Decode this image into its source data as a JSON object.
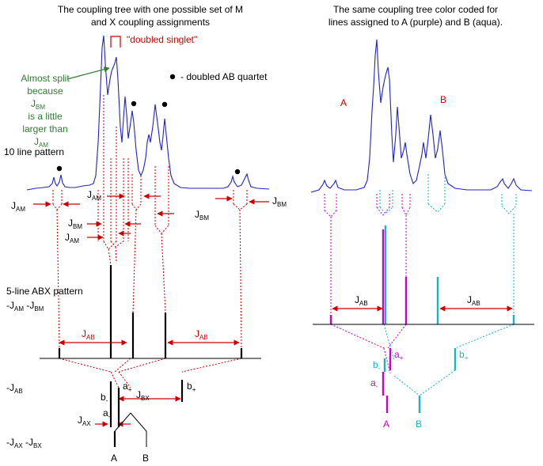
{
  "left_title": [
    "The coupling tree with one possible set of M",
    "and X coupling assignments"
  ],
  "right_title": [
    "The same coupling tree color coded for",
    "lines assigned to A (purple) and B (aqua)."
  ],
  "doubled_singlet": "\"doubled singlet\"",
  "doubled_quartet": "- doubled AB quartet",
  "almost_split": [
    "Almost split",
    "because",
    "J",
    "BM",
    "is a little",
    "larger than",
    "J",
    "AM"
  ],
  "ten_line": "10 line pattern",
  "five_line": "5-line ABX pattern",
  "five_line_sub": [
    "-J",
    "AM",
    " -J",
    "BM"
  ],
  "j_letter": "J",
  "sub_am": "AM",
  "sub_bm": "BM",
  "sub_ab": "AB",
  "sub_bx": "BX",
  "sub_ax": "AX",
  "neg_jab": [
    "-J",
    "AB"
  ],
  "neg_jax_jbx": [
    "-J",
    "AX",
    " -J",
    "BX"
  ],
  "lbl_a_plus": [
    "a",
    "+"
  ],
  "lbl_a_minus": [
    "a",
    "-"
  ],
  "lbl_b_plus": [
    "b",
    "+"
  ],
  "lbl_b_minus": [
    "b",
    "-"
  ],
  "lbl_A": "A",
  "lbl_B": "B",
  "colors": {
    "spectrum": "#2222cc",
    "red": "#cc0000",
    "purple": "#cc00cc",
    "aqua": "#17b5c4",
    "green": "#2e7d32"
  }
}
